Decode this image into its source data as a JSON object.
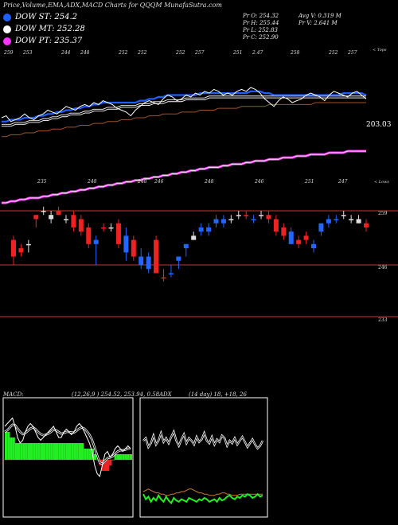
{
  "header": {
    "title": "Price,Volume,EMA,ADX,MACD Charts for QQQM MunafaSutra.com"
  },
  "legend": [
    {
      "label": "DOW ST: 254.2",
      "color": "#1f5fff"
    },
    {
      "label": "DOW MT: 252.28",
      "color": "#ffffff"
    },
    {
      "label": "DOW PT: 235.37",
      "color": "#ff33ff"
    }
  ],
  "stats": {
    "pr_o": "Pr  O: 254.32",
    "pr_h": "Pr  H: 255.44",
    "pr_l": "Pr  L: 252.83",
    "pr_c": "Pr  C: 252.90",
    "avg_v": "Avg V: 0.319 M",
    "pr_v": "Pr  V: 2.641 M"
  },
  "upper_panel": {
    "top_right_label": "< Tops",
    "bottom_right_label": "< Lows",
    "price_label": "203.03",
    "top_labels": [
      "259",
      "253",
      "",
      "244",
      "248",
      "",
      "252",
      "252",
      "",
      "252",
      "257",
      "",
      "251",
      "2.47",
      "",
      "258",
      "",
      "252",
      "257"
    ],
    "low_labels": [
      "",
      "",
      "235",
      "",
      "",
      "248",
      "",
      "",
      "248",
      "246",
      "",
      "",
      "248",
      "",
      "",
      "246",
      "",
      "",
      "251",
      "",
      "247"
    ]
  },
  "lower_panel": {
    "levels": [
      "259",
      "246",
      "233"
    ]
  },
  "macd": {
    "label": "MACD:",
    "params": "(12,26,9 ) 254.52,  253.94,  0.58"
  },
  "adx": {
    "label": "ADX",
    "params": "(14  day) 18,  +18,  26"
  },
  "chart_data": {
    "type": "line",
    "candles": [
      {
        "o": 252,
        "h": 253,
        "l": 246,
        "c": 248,
        "color": "red"
      },
      {
        "o": 249,
        "h": 251,
        "l": 248,
        "c": 250,
        "color": "red"
      },
      {
        "o": 251,
        "h": 252,
        "l": 249,
        "c": 251,
        "color": "white"
      },
      {
        "o": 257,
        "h": 258,
        "l": 255,
        "c": 258,
        "color": "red"
      },
      {
        "o": 259,
        "h": 260,
        "l": 258,
        "c": 259,
        "color": "white"
      },
      {
        "o": 258,
        "h": 259,
        "l": 256,
        "c": 257,
        "color": "white"
      },
      {
        "o": 259,
        "h": 260,
        "l": 258,
        "c": 258,
        "color": "red"
      },
      {
        "o": 257,
        "h": 258,
        "l": 256,
        "c": 257,
        "color": "white"
      },
      {
        "o": 258,
        "h": 259,
        "l": 254,
        "c": 255,
        "color": "red"
      },
      {
        "o": 257,
        "h": 258,
        "l": 253,
        "c": 254,
        "color": "red"
      },
      {
        "o": 255,
        "h": 256,
        "l": 250,
        "c": 251,
        "color": "red"
      },
      {
        "o": 251,
        "h": 253,
        "l": 246,
        "c": 252,
        "color": "blue"
      },
      {
        "o": 255,
        "h": 256,
        "l": 254,
        "c": 255,
        "color": "red"
      },
      {
        "o": 255,
        "h": 256,
        "l": 254,
        "c": 255,
        "color": "white"
      },
      {
        "o": 256,
        "h": 257,
        "l": 250,
        "c": 251,
        "color": "red"
      },
      {
        "o": 249,
        "h": 255,
        "l": 247,
        "c": 253,
        "color": "blue"
      },
      {
        "o": 252,
        "h": 253,
        "l": 247,
        "c": 248,
        "color": "red"
      },
      {
        "o": 248,
        "h": 250,
        "l": 245,
        "c": 246,
        "color": "blue"
      },
      {
        "o": 248,
        "h": 249,
        "l": 244,
        "c": 245,
        "color": "blue"
      },
      {
        "o": 252,
        "h": 253,
        "l": 244,
        "c": 244,
        "color": "red"
      },
      {
        "o": 243,
        "h": 245,
        "l": 242,
        "c": 243,
        "color": "red"
      },
      {
        "o": 244,
        "h": 246,
        "l": 243,
        "c": 244,
        "color": "blue"
      },
      {
        "o": 247,
        "h": 248,
        "l": 245,
        "c": 248,
        "color": "blue"
      },
      {
        "o": 250,
        "h": 251,
        "l": 248,
        "c": 251,
        "color": "blue"
      },
      {
        "o": 252,
        "h": 254,
        "l": 252,
        "c": 253,
        "color": "white"
      },
      {
        "o": 254,
        "h": 256,
        "l": 253,
        "c": 255,
        "color": "blue"
      },
      {
        "o": 254,
        "h": 256,
        "l": 253,
        "c": 255,
        "color": "blue"
      },
      {
        "o": 256,
        "h": 258,
        "l": 255,
        "c": 257,
        "color": "blue"
      },
      {
        "o": 256,
        "h": 258,
        "l": 255,
        "c": 257,
        "color": "blue"
      },
      {
        "o": 257,
        "h": 258,
        "l": 256,
        "c": 257,
        "color": "white"
      },
      {
        "o": 258,
        "h": 259,
        "l": 257,
        "c": 258,
        "color": "white"
      },
      {
        "o": 258,
        "h": 259,
        "l": 257,
        "c": 258,
        "color": "red"
      },
      {
        "o": 257,
        "h": 258,
        "l": 256,
        "c": 257,
        "color": "blue"
      },
      {
        "o": 258,
        "h": 259,
        "l": 257,
        "c": 258,
        "color": "white"
      },
      {
        "o": 258,
        "h": 259,
        "l": 256,
        "c": 257,
        "color": "red"
      },
      {
        "o": 257,
        "h": 258,
        "l": 253,
        "c": 254,
        "color": "red"
      },
      {
        "o": 255,
        "h": 256,
        "l": 252,
        "c": 253,
        "color": "red"
      },
      {
        "o": 254,
        "h": 255,
        "l": 251,
        "c": 251,
        "color": "blue"
      },
      {
        "o": 252,
        "h": 253,
        "l": 250,
        "c": 251,
        "color": "red"
      },
      {
        "o": 252,
        "h": 254,
        "l": 251,
        "c": 253,
        "color": "red"
      },
      {
        "o": 250,
        "h": 252,
        "l": 249,
        "c": 251,
        "color": "blue"
      },
      {
        "o": 254,
        "h": 256,
        "l": 253,
        "c": 256,
        "color": "blue"
      },
      {
        "o": 256,
        "h": 258,
        "l": 255,
        "c": 257,
        "color": "blue"
      },
      {
        "o": 257,
        "h": 258,
        "l": 256,
        "c": 257,
        "color": "blue"
      },
      {
        "o": 258,
        "h": 259,
        "l": 257,
        "c": 258,
        "color": "white"
      },
      {
        "o": 257,
        "h": 258,
        "l": 256,
        "c": 257,
        "color": "white"
      },
      {
        "o": 257,
        "h": 258,
        "l": 256,
        "c": 256,
        "color": "white"
      },
      {
        "o": 256,
        "h": 257,
        "l": 254,
        "c": 255,
        "color": "red"
      }
    ],
    "price_line": [
      250,
      251,
      248,
      249,
      250,
      252,
      250,
      249,
      251,
      252,
      254,
      253,
      252,
      254,
      256,
      255,
      254,
      256,
      257,
      256,
      258,
      257,
      259,
      258,
      257,
      255,
      254,
      253,
      251,
      254,
      256,
      258,
      259,
      258,
      257,
      260,
      262,
      261,
      259,
      260,
      262,
      261,
      263,
      262,
      264,
      263,
      265,
      264,
      262,
      263,
      262,
      264,
      265,
      264,
      266,
      265,
      263,
      260,
      258,
      256,
      259,
      261,
      260,
      258,
      259,
      260,
      262,
      263,
      262,
      261,
      259,
      262,
      264,
      263,
      262,
      261,
      263,
      264,
      262,
      260
    ],
    "ema_short": [
      248,
      248,
      249,
      249,
      249,
      250,
      250,
      250,
      251,
      251,
      252,
      252,
      253,
      253,
      254,
      254,
      255,
      255,
      256,
      256,
      257,
      257,
      258,
      258,
      258,
      258,
      258,
      258,
      258,
      258,
      259,
      259,
      260,
      260,
      261,
      261,
      262,
      262,
      262,
      262,
      262,
      262,
      262,
      263,
      263,
      263,
      263,
      263,
      263,
      263,
      263,
      263,
      263,
      263,
      264,
      264,
      264,
      263,
      263,
      262,
      262,
      262,
      262,
      262,
      262,
      262,
      262,
      262,
      262,
      262,
      262,
      262,
      262,
      262,
      263,
      263,
      263,
      263,
      263,
      262
    ],
    "ema_mid": [
      246,
      246,
      246,
      247,
      247,
      247,
      248,
      248,
      248,
      249,
      249,
      250,
      250,
      251,
      251,
      252,
      252,
      252,
      253,
      253,
      254,
      254,
      254,
      255,
      255,
      255,
      256,
      256,
      256,
      256,
      257,
      257,
      257,
      258,
      258,
      258,
      259,
      259,
      259,
      259,
      260,
      260,
      260,
      260,
      260,
      261,
      261,
      261,
      261,
      261,
      261,
      261,
      261,
      261,
      261,
      261,
      261,
      261,
      261,
      261,
      261,
      261,
      261,
      261,
      261,
      261,
      261,
      261,
      261,
      261,
      261,
      261,
      261,
      261,
      261,
      261,
      261,
      261,
      261,
      261
    ],
    "ema_long": [
      240,
      240,
      241,
      241,
      241,
      242,
      242,
      242,
      243,
      243,
      243,
      244,
      244,
      244,
      245,
      245,
      245,
      246,
      246,
      246,
      247,
      247,
      247,
      248,
      248,
      248,
      249,
      249,
      249,
      250,
      250,
      250,
      251,
      251,
      251,
      252,
      252,
      252,
      252,
      253,
      253,
      253,
      253,
      254,
      254,
      254,
      254,
      255,
      255,
      255,
      255,
      255,
      256,
      256,
      256,
      256,
      256,
      256,
      257,
      257,
      257,
      257,
      257,
      257,
      257,
      257,
      257,
      257,
      258,
      258,
      258,
      258,
      258,
      258,
      258,
      258,
      258,
      258,
      258,
      258
    ],
    "pt_line": [
      226,
      226,
      227,
      227,
      228,
      228,
      229,
      229,
      229,
      230,
      230,
      231,
      231,
      232,
      232,
      233,
      233,
      234,
      234,
      235,
      235,
      236,
      236,
      237,
      237,
      238,
      238,
      239,
      239,
      240,
      240,
      241,
      241,
      242,
      242,
      243,
      243,
      244,
      244,
      245,
      245,
      246,
      246,
      247,
      247,
      248,
      248,
      248,
      249,
      249,
      250,
      250,
      250,
      251,
      251,
      252,
      252,
      252,
      253,
      253,
      253,
      254,
      254,
      254,
      255,
      255,
      255,
      256,
      256,
      256,
      256,
      257,
      257,
      257,
      257,
      258,
      258,
      258,
      258,
      258
    ],
    "macd_hist": [
      5,
      5,
      4,
      4,
      3,
      3,
      3,
      3,
      3,
      3,
      3,
      3,
      3,
      3,
      3,
      3,
      3,
      3,
      3,
      3,
      3,
      3,
      3,
      3,
      3,
      3,
      3,
      3,
      3,
      3,
      3,
      2,
      2,
      2,
      2,
      1,
      0,
      -1,
      -2,
      -2,
      -2,
      -1,
      0,
      1,
      1,
      1,
      1,
      1,
      1,
      1
    ],
    "macd_line": [
      6,
      6.5,
      7,
      7.5,
      6,
      4,
      3,
      3.5,
      5,
      6,
      6.5,
      6,
      5,
      4,
      3.5,
      4,
      4.5,
      5,
      5.5,
      6,
      5,
      4,
      4,
      5,
      5.5,
      5,
      4.5,
      5,
      6,
      6.5,
      6,
      5,
      4,
      3,
      1.5,
      -1,
      -2.5,
      -3,
      -1,
      1,
      1.5,
      0.5,
      1,
      2,
      2.5,
      2,
      1.5,
      2,
      2.5,
      2
    ],
    "macd_signal": [
      5,
      5.3,
      5.8,
      6.3,
      6.2,
      5.6,
      5,
      4.6,
      4.8,
      5.2,
      5.6,
      5.8,
      5.5,
      5,
      4.6,
      4.4,
      4.5,
      4.7,
      5,
      5.4,
      5.3,
      5,
      4.7,
      4.8,
      5,
      5,
      4.9,
      4.9,
      5.2,
      5.6,
      5.8,
      5.6,
      5.1,
      4.5,
      3.6,
      2.2,
      0.8,
      -0.5,
      -0.7,
      -0.2,
      0.3,
      0.4,
      0.6,
      1.1,
      1.5,
      1.7,
      1.7,
      1.8,
      2,
      2
    ],
    "adx_plus": [
      60,
      62,
      55,
      58,
      64,
      57,
      60,
      66,
      59,
      62,
      58,
      63,
      67,
      60,
      56,
      61,
      65,
      58,
      62,
      60,
      57,
      63,
      59,
      61,
      66,
      60,
      58,
      63,
      57,
      61,
      59,
      64,
      62,
      56,
      60,
      58,
      62,
      57,
      60,
      63,
      59,
      55,
      58,
      61,
      57,
      54,
      56,
      60
    ],
    "adx_minus": [
      18,
      14,
      16,
      12,
      15,
      13,
      17,
      14,
      12,
      16,
      13,
      11,
      15,
      13,
      12,
      14,
      13,
      12,
      15,
      14,
      13,
      12,
      14,
      13,
      15,
      14,
      12,
      13,
      14,
      12,
      15,
      13,
      14,
      16,
      17,
      15,
      14,
      16,
      15,
      17,
      16,
      18,
      17,
      15,
      16,
      18,
      16,
      17
    ],
    "adx_line": [
      20,
      21,
      22,
      21,
      20,
      19,
      19,
      18,
      18,
      17,
      17,
      18,
      18,
      19,
      19,
      20,
      20,
      21,
      22,
      22,
      21,
      20,
      19,
      19,
      18,
      18,
      17,
      17,
      17,
      18,
      18,
      19,
      19,
      18,
      18,
      17,
      17,
      17,
      18,
      18,
      18,
      18,
      18,
      18,
      18,
      18,
      18,
      18
    ]
  }
}
